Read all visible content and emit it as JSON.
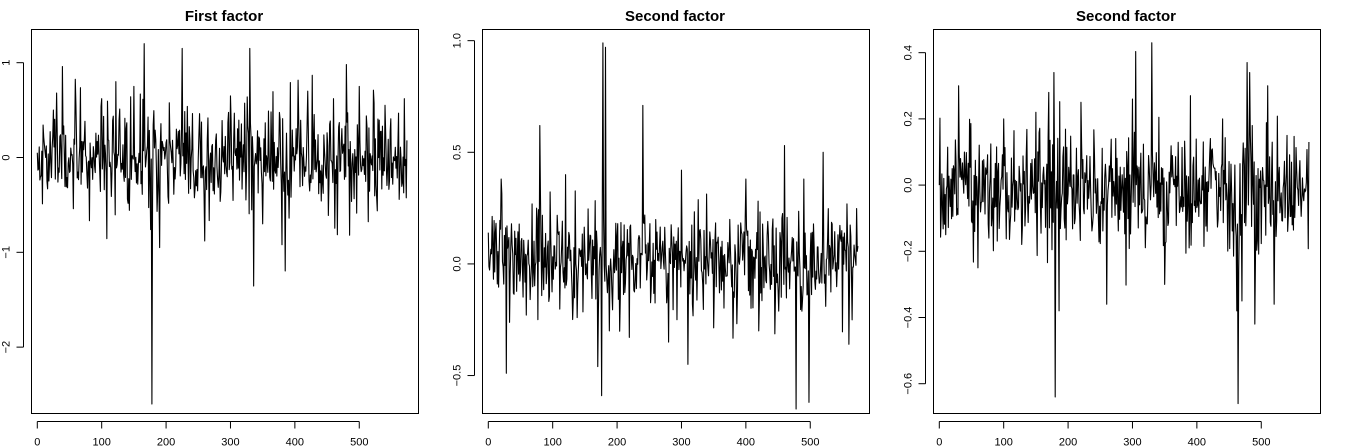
{
  "chart_data": [
    {
      "type": "line",
      "title": "First factor",
      "xlabel": "",
      "ylabel": "",
      "xlim": [
        -9,
        592
      ],
      "ylim": [
        -2.7,
        1.35
      ],
      "x_ticks": [
        0,
        100,
        200,
        300,
        400,
        500
      ],
      "y_ticks": [
        -2,
        -1,
        0,
        1
      ],
      "grid": false,
      "series": [
        {
          "n": 575,
          "mean": 0.0,
          "sd": 0.27,
          "seed": 11,
          "values": {
            "0": 0.05,
            "30": 0.68,
            "60": 0.55,
            "100": 0.62,
            "122": 0.8,
            "150": 0.75,
            "166": 1.2,
            "178": -2.6,
            "190": -0.95,
            "225": 1.15,
            "260": -0.88,
            "300": 0.65,
            "330": 1.15,
            "350": -0.7,
            "380": -0.92,
            "420": 0.7,
            "460": 0.62,
            "480": 0.98,
            "485": -0.82,
            "500": 0.75,
            "540": 0.55,
            "570": 0.62,
            "574": 0.18
          }
        }
      ]
    },
    {
      "type": "line",
      "title": "Second factor",
      "xlabel": "",
      "ylabel": "",
      "xlim": [
        -9,
        592
      ],
      "ylim": [
        -0.67,
        1.05
      ],
      "x_ticks": [
        0,
        100,
        200,
        300,
        400,
        500
      ],
      "y_ticks": [
        -0.5,
        0.0,
        0.5,
        1.0
      ],
      "grid": false,
      "series": [
        {
          "n": 575,
          "mean": 0.02,
          "sd": 0.12,
          "seed": 23,
          "values": {
            "0": 0.14,
            "20": 0.38,
            "28": -0.49,
            "80": 0.62,
            "120": 0.4,
            "170": -0.46,
            "176": -0.59,
            "178": 0.99,
            "182": 0.97,
            "188": -0.3,
            "240": 0.71,
            "280": -0.35,
            "300": 0.42,
            "310": -0.45,
            "400": 0.38,
            "420": -0.3,
            "460": 0.53,
            "478": -0.65,
            "490": 0.38,
            "498": -0.62,
            "520": 0.5,
            "560": -0.36,
            "574": 0.08
          }
        }
      ]
    },
    {
      "type": "line",
      "title": "Second factor",
      "xlabel": "",
      "ylabel": "",
      "xlim": [
        -9,
        592
      ],
      "ylim": [
        -0.69,
        0.47
      ],
      "x_ticks": [
        0,
        100,
        200,
        300,
        400,
        500
      ],
      "y_ticks": [
        -0.6,
        -0.4,
        -0.2,
        0.0,
        0.2,
        0.4
      ],
      "grid": false,
      "series": [
        {
          "n": 575,
          "mean": -0.02,
          "sd": 0.09,
          "seed": 37,
          "values": {
            "0": 0.0,
            "10": -0.15,
            "30": 0.3,
            "60": -0.25,
            "100": 0.2,
            "150": 0.22,
            "170": 0.28,
            "178": 0.34,
            "180": -0.64,
            "186": -0.38,
            "220": 0.25,
            "260": -0.36,
            "300": 0.26,
            "330": 0.43,
            "350": -0.3,
            "390": 0.27,
            "440": 0.2,
            "462": -0.38,
            "464": -0.66,
            "470": -0.35,
            "478": 0.37,
            "482": 0.34,
            "490": -0.42,
            "510": 0.3,
            "520": -0.36,
            "540": 0.15,
            "574": 0.13
          }
        }
      ]
    }
  ]
}
